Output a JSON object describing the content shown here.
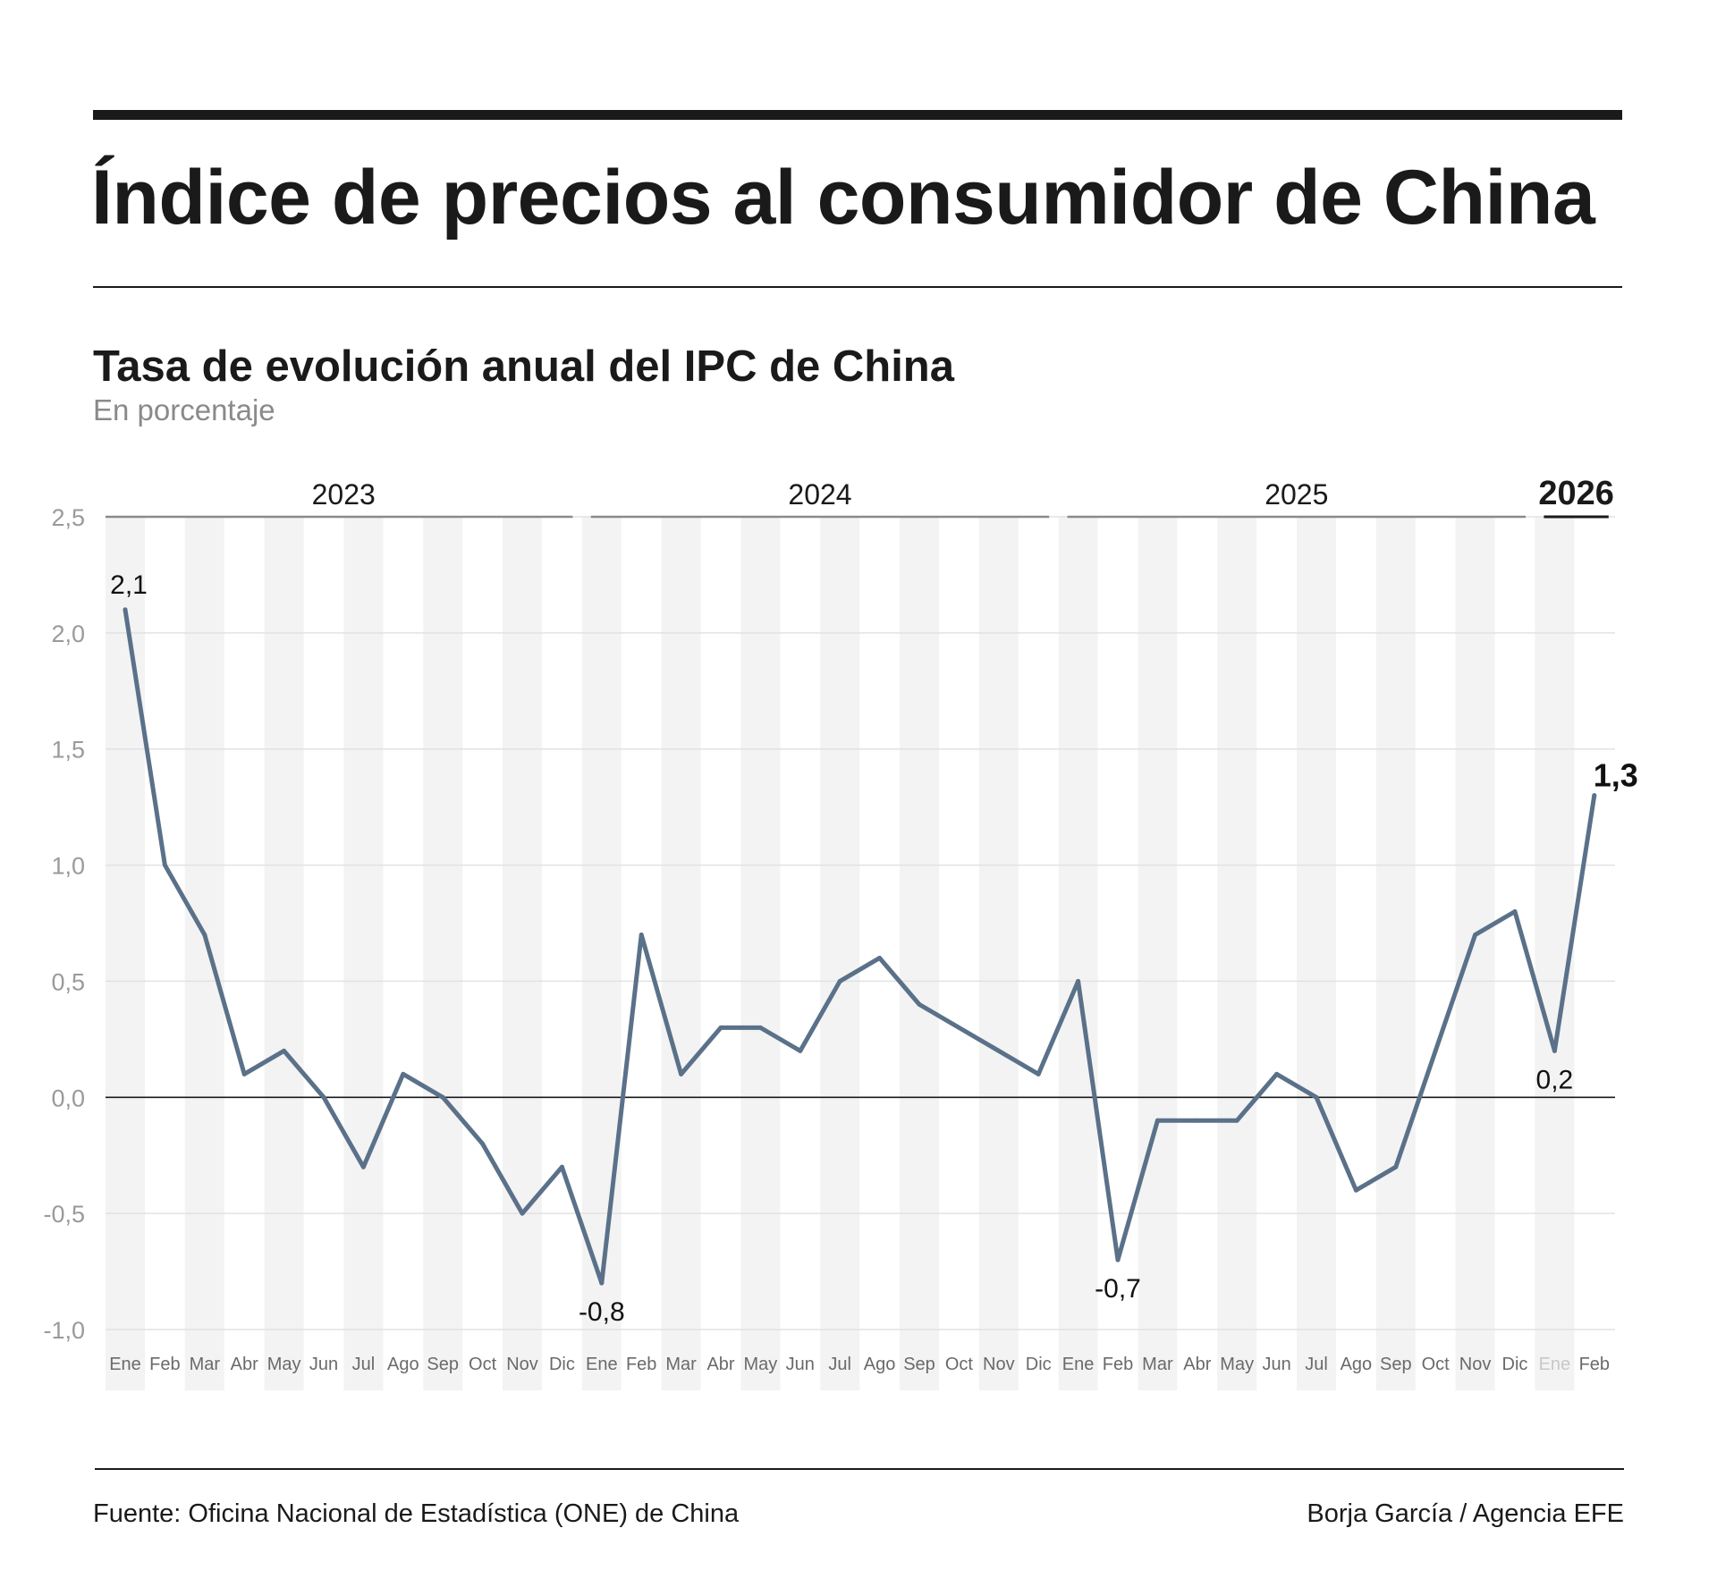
{
  "header": {
    "title": "Índice de precios al consumidor de China",
    "subtitle": "Tasa de evolución anual del IPC de China",
    "unit": "En porcentaje"
  },
  "footer": {
    "source": "Fuente: Oficina Nacional de Estadística (ONE) de China",
    "credit": "Borja García / Agencia EFE"
  },
  "chart_data": {
    "type": "line",
    "title": "Tasa de evolución anual del IPC de China",
    "ylabel": "En porcentaje",
    "ylim": [
      -1.0,
      2.5
    ],
    "yticks": [
      "2,5",
      "2,0",
      "1,5",
      "1,0",
      "0,5",
      "0,0",
      "-0,5",
      "-1,0"
    ],
    "ytick_values": [
      2.5,
      2.0,
      1.5,
      1.0,
      0.5,
      0.0,
      -0.5,
      -1.0
    ],
    "grid": true,
    "years": [
      {
        "label": "2023",
        "start": 0,
        "end": 11
      },
      {
        "label": "2024",
        "start": 12,
        "end": 23
      },
      {
        "label": "2025",
        "start": 24,
        "end": 35
      },
      {
        "label": "2026",
        "start": 36,
        "end": 37
      }
    ],
    "categories": [
      "Ene",
      "Feb",
      "Mar",
      "Abr",
      "May",
      "Jun",
      "Jul",
      "Ago",
      "Sep",
      "Oct",
      "Nov",
      "Dic",
      "Ene",
      "Feb",
      "Mar",
      "Abr",
      "May",
      "Jun",
      "Jul",
      "Ago",
      "Sep",
      "Oct",
      "Nov",
      "Dic",
      "Ene",
      "Feb",
      "Mar",
      "Abr",
      "May",
      "Jun",
      "Jul",
      "Ago",
      "Sep",
      "Oct",
      "Nov",
      "Dic",
      "Ene",
      "Feb"
    ],
    "muted_categories": [
      36
    ],
    "values": [
      2.1,
      1.0,
      0.7,
      0.1,
      0.2,
      0.0,
      -0.3,
      0.1,
      0.0,
      -0.2,
      -0.5,
      -0.3,
      -0.8,
      0.7,
      0.1,
      0.3,
      0.3,
      0.2,
      0.5,
      0.6,
      0.4,
      0.3,
      0.2,
      0.1,
      0.5,
      -0.7,
      -0.1,
      -0.1,
      -0.1,
      0.1,
      0.0,
      -0.4,
      -0.3,
      0.2,
      0.7,
      0.8,
      0.2,
      1.3
    ],
    "annotations": [
      {
        "index": 0,
        "label": "2,1"
      },
      {
        "index": 12,
        "label": "-0,8"
      },
      {
        "index": 25,
        "label": "-0,7"
      },
      {
        "index": 36,
        "label": "0,2"
      },
      {
        "index": 37,
        "label": "1,3",
        "bold": true
      }
    ],
    "colors": {
      "line": "#5a7189",
      "stripe": "#f3f3f3",
      "grid": "#e2e2e2",
      "axis": "#1a1a1a",
      "tick": "#9a9a9a"
    }
  }
}
